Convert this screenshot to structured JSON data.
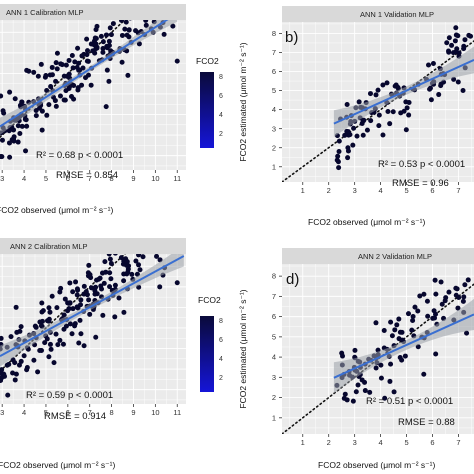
{
  "legend": {
    "title": "FCO2",
    "ticks": [
      "2",
      "4",
      "6",
      "8"
    ],
    "colors": [
      "#0a0a3a",
      "#1515d8"
    ]
  },
  "chart_data": [
    {
      "type": "scatter",
      "tag": "",
      "strip_title": "ANN 1 Calibration  MLP",
      "xlabel": "FCO2 observed (μmol m⁻² s⁻¹)",
      "ylabel": "",
      "xticks": [
        3,
        4,
        5,
        6,
        7,
        8,
        9,
        10,
        11
      ],
      "yticks": [],
      "xlim": [
        2.9,
        11.4
      ],
      "ylim": [
        1.3,
        8.6
      ],
      "r2_text": "R² = 0.68  p < 0.0001",
      "rmse_text": "RMSE = 0.854",
      "fit": {
        "slope": 0.68,
        "intercept": 1.45,
        "x_range": [
          2.9,
          11.0
        ],
        "band": 0.13
      },
      "point_color": "#07072e",
      "point_cloud": {
        "n": 220,
        "x_range": [
          2.9,
          10.8
        ],
        "sd": 0.78,
        "seed": 11
      },
      "points": [
        [
          11.0,
          6.6
        ],
        [
          10.8,
          8.3
        ],
        [
          10.4,
          7.9
        ],
        [
          9.9,
          8.0
        ]
      ]
    },
    {
      "type": "scatter",
      "tag": "b)",
      "strip_title": "ANN 1 Validation  MLP",
      "xlabel": "FCO2 observed (μmol m⁻² s⁻¹)",
      "ylabel": "FCO2 estimated (μmol m⁻² s⁻¹)",
      "xticks": [
        1,
        2,
        3,
        4,
        5,
        6,
        7
      ],
      "yticks": [
        1,
        2,
        3,
        4,
        5,
        6,
        7,
        8
      ],
      "xlim": [
        0.2,
        7.6
      ],
      "ylim": [
        0.2,
        8.6
      ],
      "r2_text": "R² = 0.53  p < 0.0001",
      "rmse_text": "RMSE = 0.96",
      "fit": {
        "slope": 0.62,
        "intercept": 1.9,
        "x_range": [
          2.2,
          7.6
        ],
        "band": 0.22
      },
      "point_color": "#07072e",
      "point_cloud": {
        "n": 110,
        "x_range": [
          2.3,
          7.5
        ],
        "sd": 0.85,
        "seed": 23
      },
      "points": [
        [
          6.9,
          8.3
        ],
        [
          7.4,
          7.9
        ],
        [
          7.2,
          7.2
        ]
      ]
    },
    {
      "type": "scatter",
      "tag": "",
      "strip_title": "ANN 2 Calibration  MLP",
      "xlabel": "FCO2 observed (μmol m⁻² s⁻¹)",
      "ylabel": "",
      "xticks": [
        3,
        4,
        5,
        6,
        7,
        8,
        9,
        10,
        11
      ],
      "yticks": [],
      "xlim": [
        2.9,
        11.4
      ],
      "ylim": [
        1.3,
        8.6
      ],
      "r2_text": "R² = 0.59  p < 0.0001",
      "rmse_text": "RMSE = 0.914",
      "fit": {
        "slope": 0.58,
        "intercept": 1.95,
        "x_range": [
          2.9,
          11.3
        ],
        "band": 0.16
      },
      "point_color": "#07072e",
      "point_cloud": {
        "n": 230,
        "x_range": [
          2.9,
          10.9
        ],
        "sd": 0.85,
        "seed": 37
      },
      "points": [
        [
          11.0,
          7.2
        ],
        [
          10.2,
          7.0
        ]
      ]
    },
    {
      "type": "scatter",
      "tag": "d)",
      "strip_title": "ANN 2 Validation  MLP",
      "xlabel": "FCO2 observed (μmol m⁻² s⁻¹)",
      "ylabel": "FCO2 estimated (μmol m⁻² s⁻¹)",
      "xticks": [
        1,
        2,
        3,
        4,
        5,
        6,
        7
      ],
      "yticks": [
        1,
        2,
        3,
        4,
        5,
        6,
        7,
        8
      ],
      "xlim": [
        0.2,
        7.6
      ],
      "ylim": [
        0.2,
        8.6
      ],
      "r2_text": "R² = 0.51  p < 0.0001",
      "rmse_text": "RMSE = 0.88",
      "fit": {
        "slope": 0.58,
        "intercept": 1.7,
        "x_range": [
          2.2,
          7.6
        ],
        "band": 0.24
      },
      "point_color": "#07072e",
      "point_cloud": {
        "n": 105,
        "x_range": [
          2.3,
          7.5
        ],
        "sd": 0.8,
        "seed": 53
      },
      "points": [
        [
          6.9,
          7.4
        ],
        [
          6.1,
          7.8
        ]
      ]
    }
  ]
}
